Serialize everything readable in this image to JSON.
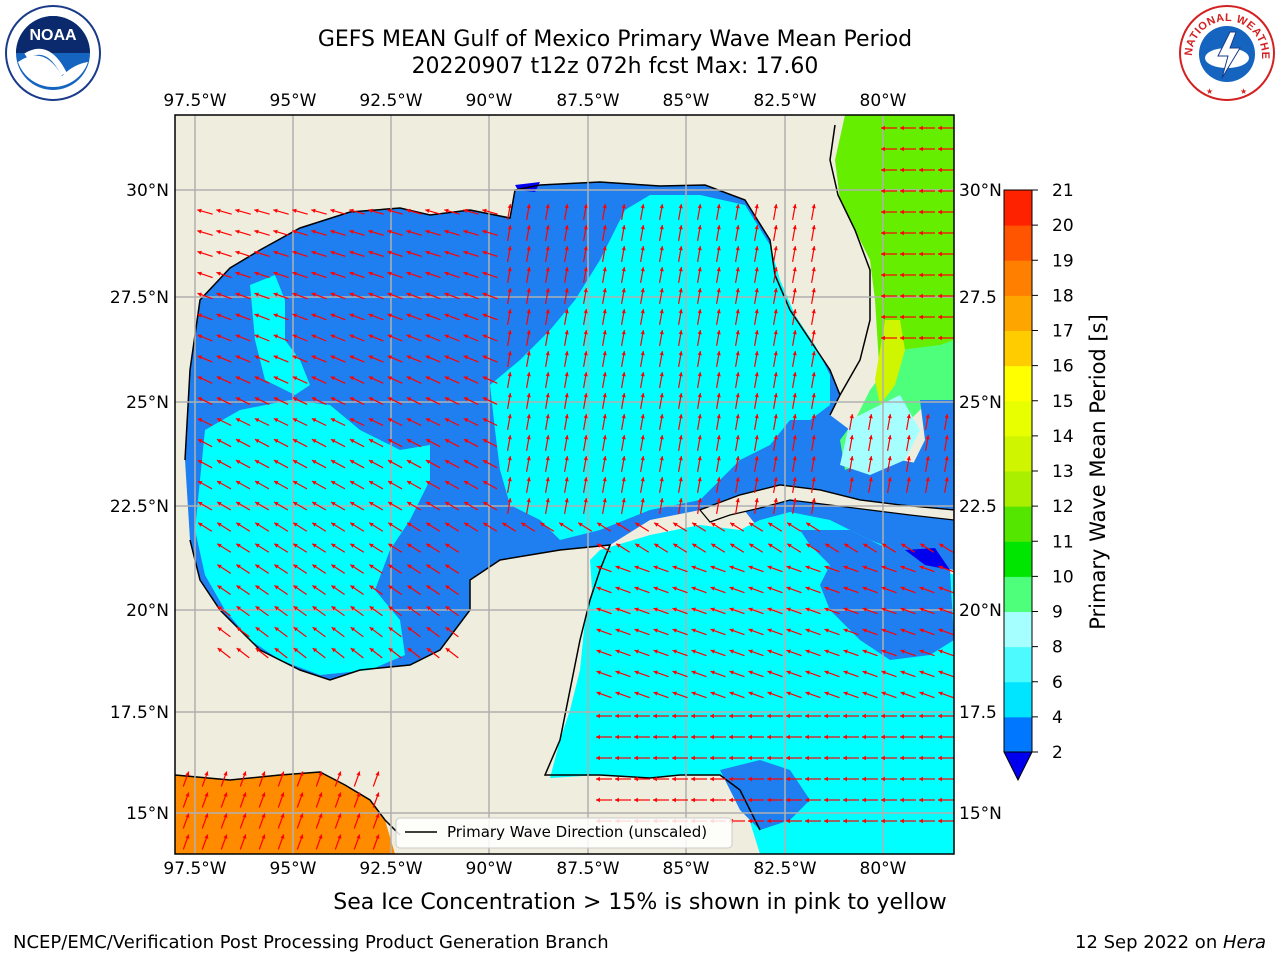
{
  "title": {
    "line1": "GEFS MEAN Gulf of Mexico Primary Wave Mean Period",
    "line2": "20220907 t12z 072h fcst   Max: 17.60"
  },
  "axes": {
    "lon_ticks_top": [
      "97.5°W",
      "95°W",
      "92.5°W",
      "90°W",
      "87.5°W",
      "85°W",
      "82.5°W",
      "80°W"
    ],
    "lon_ticks_bottom": [
      "97.5°W",
      "95°W",
      "92.5°W",
      "90°W",
      "87.5°W",
      "85°W",
      "82.5°W",
      "80°W"
    ],
    "lat_ticks_left": [
      "30°N",
      "27.5°N",
      "25°N",
      "22.5°N",
      "20°N",
      "17.5°N",
      "15°N"
    ],
    "lat_ticks_right": [
      "30°N",
      "27.5",
      "25°N",
      "22.5",
      "20°N",
      "17.5",
      "15°N"
    ]
  },
  "legend": {
    "label": "Primary Wave Direction (unscaled)"
  },
  "colorbar": {
    "label": "Primary Wave Mean Period [s]",
    "ticks": [
      "2",
      "4",
      "6",
      "8",
      "9",
      "10",
      "11",
      "12",
      "13",
      "14",
      "15",
      "16",
      "17",
      "18",
      "19",
      "20",
      "21"
    ],
    "colors": [
      "#0077ff",
      "#00e5ff",
      "#4dfbff",
      "#a6ffff",
      "#4dff7a",
      "#00e600",
      "#55e600",
      "#aaee00",
      "#cff500",
      "#e8ff00",
      "#ffff00",
      "#ffcc00",
      "#ffa500",
      "#ff8000",
      "#ff5500",
      "#ff2200"
    ],
    "extend_color": "#0000ee"
  },
  "map_colors": {
    "land": "#efedde",
    "dark_blue": "#1f7ff0",
    "cyan": "#00ffff",
    "green": "#66ee00",
    "orange": "#ff8c00",
    "arrow": "#ff0000"
  },
  "note": "Sea Ice Concentration > 15% is shown in pink to yellow",
  "footer": {
    "left": "NCEP/EMC/Verification Post Processing Product Generation Branch",
    "right_prefix": "12 Sep 2022 on ",
    "right_host": "Hera"
  },
  "logos": {
    "left": "NOAA",
    "right": "NATIONAL WEATHER SERVICE"
  }
}
